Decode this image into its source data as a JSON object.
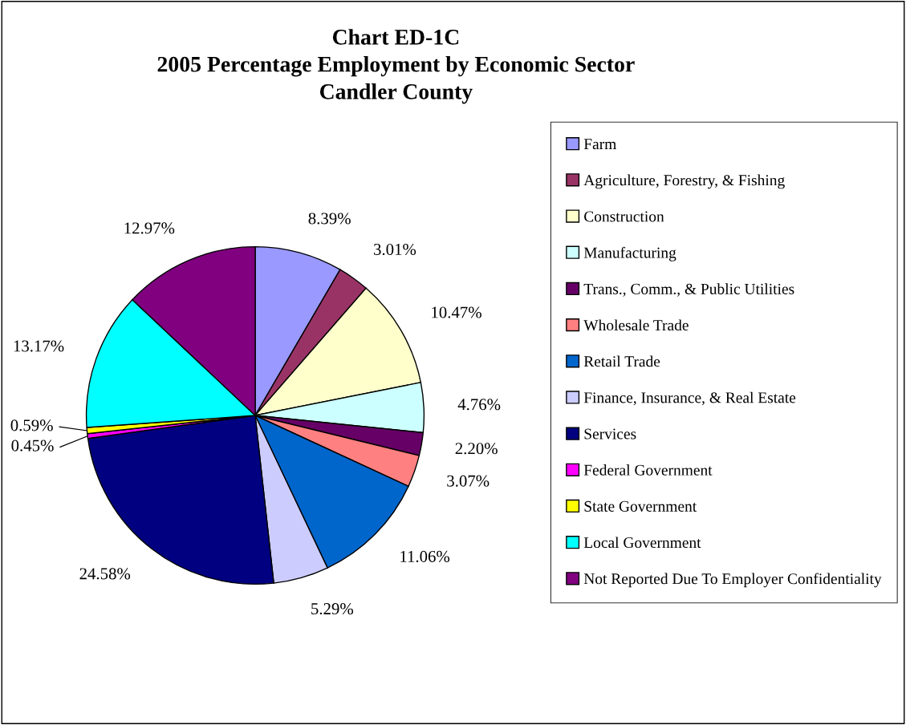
{
  "chart_data": {
    "type": "pie",
    "title": "Chart ED-1C\n2005 Percentage Employment by Economic Sector\nCandler County",
    "categories": [
      "Farm",
      "Agriculture, Forestry, & Fishing",
      "Construction",
      "Manufacturing",
      "Trans., Comm., & Public Utilities",
      "Wholesale Trade",
      "Retail Trade",
      "Finance, Insurance, & Real Estate",
      "Services",
      "Federal Government",
      "State Government",
      "Local Government",
      "Not Reported Due To Employer Confidentiality"
    ],
    "values": [
      8.39,
      3.01,
      10.47,
      4.76,
      2.2,
      3.07,
      11.06,
      5.29,
      24.58,
      0.45,
      0.59,
      13.17,
      12.97
    ],
    "value_labels": [
      "8.39%",
      "3.01%",
      "10.47%",
      "4.76%",
      "2.20%",
      "3.07%",
      "11.06%",
      "5.29%",
      "24.58%",
      "0.45%",
      "0.59%",
      "13.17%",
      "12.97%"
    ],
    "colors": [
      "#9999ff",
      "#993366",
      "#ffffcc",
      "#ccffff",
      "#660066",
      "#ff8080",
      "#0066cc",
      "#ccccff",
      "#000080",
      "#ff00ff",
      "#ffff00",
      "#00ffff",
      "#800080"
    ],
    "legend": "right"
  }
}
